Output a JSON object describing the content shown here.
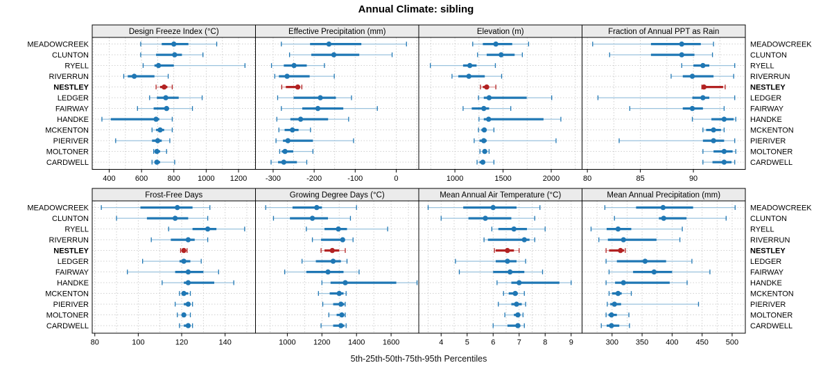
{
  "title": "Annual Climate: sibling",
  "caption": "5th-25th-50th-75th-95th Percentiles",
  "highlight_site": "NESTLEY",
  "sites": [
    "MEADOWCREEK",
    "CLUNTON",
    "RYELL",
    "RIVERRUN",
    "NESTLEY",
    "LEDGER",
    "FAIRWAY",
    "HANDKE",
    "MCKENTON",
    "PIERIVER",
    "MOLTONER",
    "CARDWELL"
  ],
  "colors": {
    "series_main": "#1f77b4",
    "series_light": "#9ac2dd",
    "highlight_main": "#b22222",
    "highlight_light": "#dc9b9b",
    "strip_bg": "#ebebeb",
    "panel_border": "#000000",
    "grid": "#c9c9c9",
    "text": "#000000"
  },
  "chart_data": {
    "type": "dotplot-percentiles",
    "percentile_labels": [
      "5th",
      "25th",
      "50th",
      "75th",
      "95th"
    ],
    "legend_note": "each row shows 5th-25th-50th-75th-95th percentiles; dot = median",
    "panels": [
      {
        "title": "Design Freeze Index (°C)",
        "ticks": [
          400,
          600,
          800,
          1000,
          1200
        ],
        "domain": [
          295,
          1305
        ],
        "grid_step": 100,
        "series": [
          [
            595,
            725,
            800,
            890,
            1065
          ],
          [
            595,
            690,
            805,
            850,
            980
          ],
          [
            610,
            680,
            705,
            800,
            1240
          ],
          [
            490,
            515,
            555,
            680,
            765
          ],
          [
            690,
            715,
            740,
            760,
            790
          ],
          [
            650,
            695,
            750,
            830,
            975
          ],
          [
            575,
            675,
            755,
            770,
            915
          ],
          [
            355,
            410,
            690,
            710,
            790
          ],
          [
            665,
            690,
            715,
            740,
            790
          ],
          [
            440,
            665,
            700,
            725,
            775
          ],
          [
            675,
            685,
            695,
            715,
            755
          ],
          [
            665,
            680,
            695,
            715,
            805
          ]
        ]
      },
      {
        "title": "Effective Precipitation (mm)",
        "ticks": [
          -300,
          -200,
          -100,
          0
        ],
        "domain": [
          -343,
          55
        ],
        "grid_step": 50,
        "series": [
          [
            -280,
            -210,
            -164,
            -85,
            25
          ],
          [
            -260,
            -207,
            -152,
            -90,
            -10
          ],
          [
            -304,
            -274,
            -249,
            -218,
            -175
          ],
          [
            -296,
            -286,
            -266,
            -211,
            -151
          ],
          [
            -279,
            -269,
            -240,
            -234,
            -230
          ],
          [
            -289,
            -250,
            -185,
            -147,
            -109
          ],
          [
            -280,
            -229,
            -191,
            -129,
            -46
          ],
          [
            -291,
            -258,
            -233,
            -166,
            -116
          ],
          [
            -286,
            -272,
            -253,
            -238,
            -209
          ],
          [
            -293,
            -276,
            -264,
            -203,
            -104
          ],
          [
            -284,
            -279,
            -271,
            -251,
            -203
          ],
          [
            -305,
            -288,
            -274,
            -242,
            -218
          ]
        ]
      },
      {
        "title": "Elevation (m)",
        "ticks": [
          1000,
          1500,
          2000
        ],
        "domain": [
          625,
          2320
        ],
        "grid_step": 250,
        "series": [
          [
            1185,
            1290,
            1425,
            1595,
            1765
          ],
          [
            1235,
            1330,
            1480,
            1620,
            1700
          ],
          [
            745,
            1085,
            1155,
            1225,
            1420
          ],
          [
            970,
            1035,
            1145,
            1310,
            1485
          ],
          [
            1265,
            1290,
            1330,
            1355,
            1425
          ],
          [
            1245,
            1300,
            1355,
            1745,
            2005
          ],
          [
            1085,
            1175,
            1300,
            1355,
            1580
          ],
          [
            1250,
            1300,
            1350,
            1920,
            2100
          ],
          [
            1245,
            1275,
            1305,
            1330,
            1405
          ],
          [
            1200,
            1255,
            1300,
            1330,
            2050
          ],
          [
            1260,
            1290,
            1310,
            1325,
            1355
          ],
          [
            1230,
            1255,
            1290,
            1310,
            1405
          ]
        ]
      },
      {
        "title": "Fraction of Annual PPT as Rain",
        "ticks": [
          80,
          85,
          90
        ],
        "domain": [
          79.5,
          94.9
        ],
        "grid_step": 2.5,
        "series": [
          [
            80.5,
            86.0,
            88.9,
            90.7,
            91.9
          ],
          [
            82.1,
            86.0,
            88.9,
            90.1,
            91.8
          ],
          [
            88.9,
            90.0,
            90.9,
            91.5,
            93.9
          ],
          [
            87.9,
            89.0,
            89.9,
            91.9,
            93.8
          ],
          [
            90.8,
            90.9,
            91.0,
            92.8,
            93.0
          ],
          [
            81.0,
            89.9,
            90.9,
            91.5,
            93.9
          ],
          [
            84.0,
            89.0,
            89.9,
            90.9,
            92.9
          ],
          [
            89.9,
            91.7,
            92.9,
            93.8,
            94.0
          ],
          [
            90.9,
            91.2,
            91.9,
            92.6,
            92.9
          ],
          [
            83.0,
            90.9,
            91.9,
            92.9,
            93.9
          ],
          [
            90.9,
            91.9,
            92.9,
            93.7,
            94.0
          ],
          [
            90.9,
            91.8,
            92.9,
            93.6,
            93.9
          ]
        ]
      },
      {
        "title": "Frost-Free Days",
        "ticks": [
          80,
          100,
          120,
          140
        ],
        "domain": [
          78.8,
          154
        ],
        "grid_step": 10,
        "series": [
          [
            83,
            101,
            118,
            125,
            133
          ],
          [
            90,
            104,
            117,
            123,
            132
          ],
          [
            114,
            125,
            132,
            136,
            149
          ],
          [
            106,
            115,
            123,
            126,
            132
          ],
          [
            119.5,
            120,
            121,
            122,
            122.5
          ],
          [
            102,
            119,
            121,
            124,
            129
          ],
          [
            95,
            117,
            123,
            130,
            137
          ],
          [
            111,
            121,
            123,
            135,
            144
          ],
          [
            119,
            120,
            121,
            123,
            124
          ],
          [
            117,
            121,
            123,
            124,
            125
          ],
          [
            118,
            120,
            121,
            122,
            124
          ],
          [
            119,
            121,
            123,
            124,
            125
          ]
        ]
      },
      {
        "title": "Growing Degree Days (°C)",
        "ticks": [
          1000,
          1200,
          1400,
          1600
        ],
        "domain": [
          816,
          1760
        ],
        "grid_step": 100,
        "series": [
          [
            875,
            1030,
            1170,
            1200,
            1400
          ],
          [
            920,
            1015,
            1145,
            1235,
            1365
          ],
          [
            1110,
            1215,
            1295,
            1345,
            1580
          ],
          [
            1145,
            1195,
            1320,
            1330,
            1380
          ],
          [
            1195,
            1215,
            1260,
            1300,
            1335
          ],
          [
            1085,
            1165,
            1265,
            1310,
            1345
          ],
          [
            985,
            1110,
            1235,
            1325,
            1415
          ],
          [
            1200,
            1250,
            1335,
            1630,
            1750
          ],
          [
            1180,
            1245,
            1300,
            1325,
            1340
          ],
          [
            1205,
            1265,
            1310,
            1330,
            1335
          ],
          [
            1240,
            1285,
            1315,
            1330,
            1335
          ],
          [
            1195,
            1265,
            1310,
            1330,
            1340
          ]
        ]
      },
      {
        "title": "Mean Annual Air Temperature (°C)",
        "ticks": [
          4,
          5,
          6,
          7,
          8,
          9
        ],
        "domain": [
          3.14,
          9.42
        ],
        "grid_step": 0.5,
        "series": [
          [
            3.5,
            4.85,
            6.0,
            6.9,
            7.8
          ],
          [
            4.0,
            5.05,
            5.7,
            6.7,
            7.6
          ],
          [
            5.95,
            6.2,
            6.8,
            7.3,
            8.0
          ],
          [
            5.65,
            5.8,
            7.2,
            7.4,
            7.6
          ],
          [
            6.05,
            6.1,
            6.55,
            6.8,
            7.0
          ],
          [
            4.55,
            6.1,
            6.55,
            6.9,
            7.25
          ],
          [
            4.7,
            6.0,
            6.65,
            7.2,
            7.9
          ],
          [
            6.15,
            6.7,
            7.0,
            8.55,
            9.0
          ],
          [
            6.4,
            6.6,
            6.85,
            6.95,
            7.2
          ],
          [
            6.2,
            6.7,
            6.9,
            7.1,
            7.25
          ],
          [
            6.45,
            6.8,
            6.95,
            7.05,
            7.15
          ],
          [
            6.0,
            6.55,
            6.95,
            7.05,
            7.2
          ]
        ]
      },
      {
        "title": "Mean Annual Precipitation (mm)",
        "ticks": [
          300,
          350,
          400,
          450,
          500
        ],
        "domain": [
          250,
          522
        ],
        "grid_step": 25,
        "series": [
          [
            288,
            340,
            385,
            435,
            505
          ],
          [
            304,
            378,
            386,
            424,
            490
          ],
          [
            265,
            291,
            310,
            332,
            417
          ],
          [
            278,
            293,
            319,
            374,
            413
          ],
          [
            290,
            295,
            314,
            320,
            322
          ],
          [
            290,
            308,
            355,
            390,
            433
          ],
          [
            295,
            335,
            370,
            400,
            463
          ],
          [
            290,
            305,
            319,
            396,
            425
          ],
          [
            295,
            300,
            310,
            316,
            332
          ],
          [
            292,
            297,
            304,
            315,
            444
          ],
          [
            290,
            294,
            299,
            308,
            328
          ],
          [
            282,
            291,
            299,
            312,
            329
          ]
        ]
      }
    ]
  }
}
